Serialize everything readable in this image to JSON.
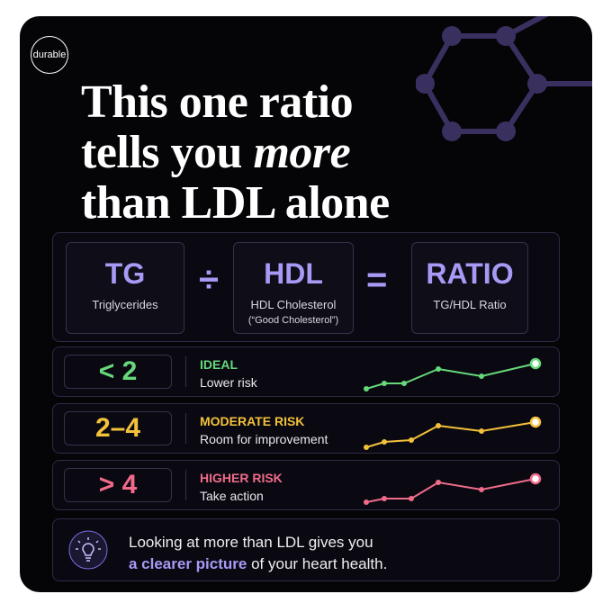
{
  "brand": "durable",
  "headline": {
    "line1": "This one ratio",
    "line2_start": "tells you",
    "line2_em": "more",
    "line3": "than LDL alone"
  },
  "formula": {
    "terms": [
      {
        "abbr": "TG",
        "label": "Triglycerides"
      },
      {
        "abbr": "HDL",
        "label": "HDL Cholesterol",
        "note": "(“Good Cholesterol”)"
      },
      {
        "abbr": "RATIO",
        "label": "TG/HDL Ratio"
      }
    ],
    "divide": "÷",
    "equals": "="
  },
  "ranges": [
    {
      "range": "< 2",
      "level": "IDEAL",
      "desc": "Lower risk"
    },
    {
      "range": "2–4",
      "level": "MODERATE RISK",
      "desc": "Room for improvement"
    },
    {
      "range": "> 4",
      "level": "HIGHER RISK",
      "desc": "Take action"
    }
  ],
  "footer": {
    "line1": "Looking at more than LDL gives you",
    "highlight": "a clearer picture",
    "rest": "of your heart health."
  }
}
